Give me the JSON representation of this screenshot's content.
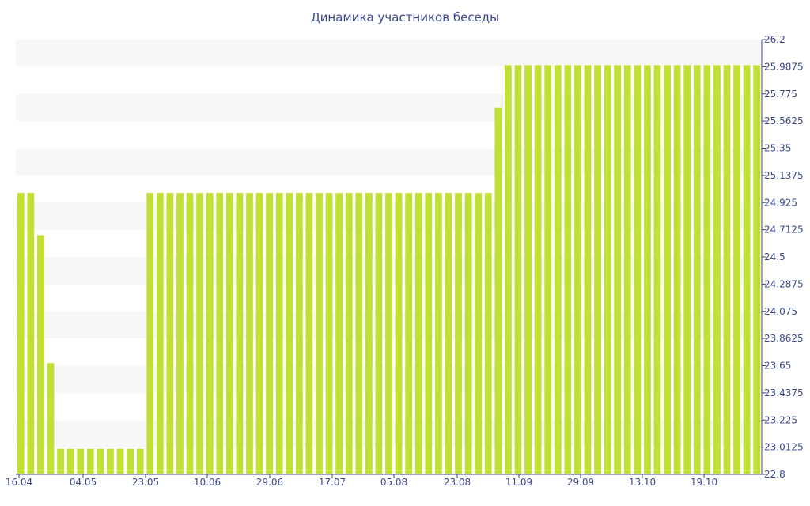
{
  "chart_data": {
    "type": "bar",
    "title": "Динамика участников беседы",
    "xlabel": "",
    "ylabel": "",
    "ylim": [
      22.8,
      26.2
    ],
    "y_ticks": [
      "26.2",
      "25.9875",
      "25.775",
      "25.5625",
      "25.35",
      "25.1375",
      "24.925",
      "24.7125",
      "24.5",
      "24.2875",
      "24.075",
      "23.8625",
      "23.65",
      "23.4375",
      "23.225",
      "23.0125",
      "22.8"
    ],
    "x_tick_labels": [
      "16.04",
      "04.05",
      "23.05",
      "10.06",
      "29.06",
      "17.07",
      "05.08",
      "23.08",
      "11.09",
      "29.09",
      "13.10",
      "19.10"
    ],
    "bar_color": "#c0e035",
    "values": [
      25,
      25,
      24.67,
      23.67,
      23,
      23,
      23,
      23,
      23,
      23,
      23,
      23,
      23,
      25,
      25,
      25,
      25,
      25,
      25,
      25,
      25,
      25,
      25,
      25,
      25,
      25,
      25,
      25,
      25,
      25,
      25,
      25,
      25,
      25,
      25,
      25,
      25,
      25,
      25,
      25,
      25,
      25,
      25,
      25,
      25,
      25,
      25,
      25,
      25.67,
      26,
      26,
      26,
      26,
      26,
      26,
      26,
      26,
      26,
      26,
      26,
      26,
      26,
      26,
      26,
      26,
      26,
      26,
      26,
      26,
      26,
      26,
      26,
      26,
      26,
      26
    ]
  }
}
